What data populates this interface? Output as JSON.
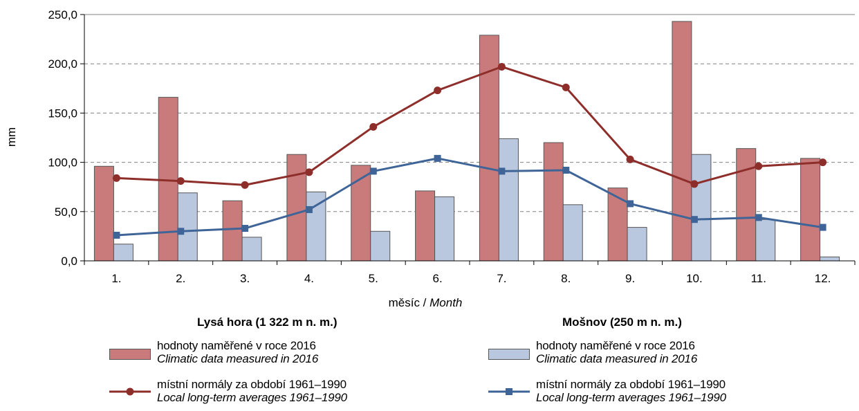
{
  "chart_data": {
    "type": "bar",
    "categories": [
      "1.",
      "2.",
      "3.",
      "4.",
      "5.",
      "6.",
      "7.",
      "8.",
      "9.",
      "10.",
      "11.",
      "12."
    ],
    "ylabel": "mm",
    "xlabel": "měsíc / ",
    "xlabel_italic": "Month",
    "ylim": [
      0,
      250
    ],
    "yticks": [
      "0,0",
      "50,0",
      "100,0",
      "150,0",
      "200,0",
      "250,0"
    ],
    "ytick_values": [
      0,
      50,
      100,
      150,
      200,
      250
    ],
    "grid": true,
    "series": [
      {
        "name": "Lysá hora – hodnoty naměřené v roce 2016",
        "kind": "bar",
        "color": "#C97B7B",
        "values": [
          96,
          166,
          61,
          108,
          97,
          71,
          229,
          120,
          74,
          243,
          114,
          104
        ]
      },
      {
        "name": "Mošnov – hodnoty naměřené v roce 2016",
        "kind": "bar",
        "color": "#B9C7DF",
        "values": [
          17,
          69,
          24,
          70,
          30,
          65,
          124,
          57,
          34,
          108,
          42,
          4
        ]
      },
      {
        "name": "Lysá hora – místní normály za období 1961–1990",
        "kind": "line",
        "color": "#8E2E2B",
        "values": [
          84,
          81,
          77,
          90,
          136,
          173,
          197,
          176,
          103,
          78,
          96,
          100
        ]
      },
      {
        "name": "Mošnov – místní normály za období 1961–1990",
        "kind": "line",
        "color": "#3F6598",
        "values": [
          26,
          30,
          33,
          52,
          91,
          104,
          91,
          92,
          58,
          42,
          44,
          34
        ]
      }
    ]
  },
  "legend": {
    "left": {
      "title": "Lysá hora (1 322 m n. m.)",
      "bar_line1": "hodnoty naměřené v roce 2016",
      "bar_line2": "Climatic data measured in 2016",
      "line_line1": "místní normály za období 1961–1990",
      "line_line2": "Local long-term averages 1961–1990"
    },
    "right": {
      "title": "Mošnov (250 m n. m.)",
      "bar_line1": "hodnoty naměřené v roce 2016",
      "bar_line2": "Climatic data measured in 2016",
      "line_line1": "místní normály za období 1961–1990",
      "line_line2": "Local long-term averages 1961–1990"
    }
  }
}
